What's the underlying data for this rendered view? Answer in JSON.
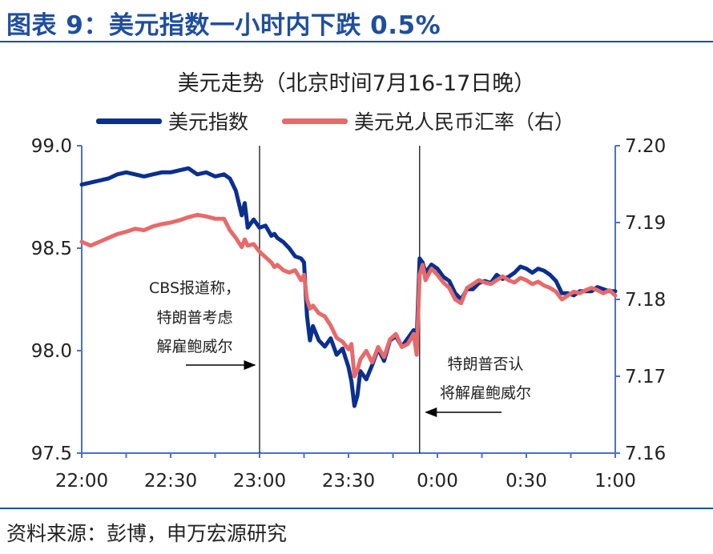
{
  "figure_title": "图表 9：美元指数一小时内下跌 0.5%",
  "source": "资料来源：彭博，申万宏源研究",
  "chart_data": {
    "type": "line",
    "title": "美元走势（北京时间7月16-17日晚）",
    "legend_position": "top",
    "grid": false,
    "x_ticks": [
      "22:00",
      "22:30",
      "23:00",
      "23:30",
      "0:00",
      "0:30",
      "1:00"
    ],
    "x_range_minutes": [
      0,
      180
    ],
    "y_left": {
      "ticks": [
        "99.0",
        "98.5",
        "98.0",
        "97.5"
      ],
      "range": [
        97.5,
        99.0
      ]
    },
    "y_right": {
      "ticks": [
        "7.20",
        "7.19",
        "7.18",
        "7.17",
        "7.16"
      ],
      "range": [
        7.16,
        7.2
      ]
    },
    "vlines_minutes": [
      60,
      114
    ],
    "series": [
      {
        "name": "美元指数",
        "axis": "left",
        "color": "#0b2f8f",
        "x": [
          0,
          3,
          6,
          9,
          12,
          15,
          18,
          21,
          24,
          27,
          30,
          33,
          36,
          39,
          42,
          45,
          48,
          50,
          52,
          54,
          55,
          56,
          58,
          60,
          62,
          64,
          65,
          66,
          68,
          70,
          72,
          74,
          75,
          76,
          77,
          78,
          80,
          82,
          84,
          86,
          88,
          90,
          91,
          92,
          93,
          94,
          96,
          98,
          100,
          102,
          104,
          106,
          108,
          110,
          112,
          113,
          114,
          115,
          116,
          118,
          120,
          122,
          124,
          126,
          128,
          130,
          132,
          134,
          136,
          138,
          140,
          142,
          144,
          146,
          148,
          150,
          152,
          154,
          156,
          158,
          160,
          162,
          164,
          166,
          168,
          170,
          172,
          174,
          176,
          178,
          180
        ],
        "y": [
          98.81,
          98.82,
          98.83,
          98.84,
          98.86,
          98.87,
          98.86,
          98.85,
          98.86,
          98.87,
          98.87,
          98.88,
          98.89,
          98.86,
          98.87,
          98.85,
          98.86,
          98.84,
          98.78,
          98.66,
          98.72,
          98.6,
          98.64,
          98.6,
          98.61,
          98.56,
          98.57,
          98.55,
          98.53,
          98.5,
          98.46,
          98.45,
          98.43,
          98.17,
          98.05,
          98.12,
          98.05,
          98.02,
          98.06,
          97.98,
          98.01,
          97.92,
          97.85,
          97.73,
          97.78,
          97.9,
          97.86,
          97.93,
          98.01,
          97.95,
          98.05,
          98.07,
          98.02,
          98.06,
          98.1,
          98.05,
          98.45,
          98.43,
          98.38,
          98.42,
          98.4,
          98.36,
          98.34,
          98.28,
          98.25,
          98.3,
          98.3,
          98.33,
          98.34,
          98.33,
          98.37,
          98.35,
          98.36,
          98.38,
          98.41,
          98.4,
          98.38,
          98.4,
          98.39,
          98.37,
          98.34,
          98.28,
          98.28,
          98.27,
          98.29,
          98.29,
          98.29,
          98.31,
          98.3,
          98.29,
          98.29
        ]
      },
      {
        "name": "美元兑人民币汇率（右）",
        "axis": "right",
        "color": "#e76a6a",
        "x": [
          0,
          3,
          6,
          9,
          12,
          15,
          18,
          21,
          24,
          27,
          30,
          33,
          36,
          39,
          42,
          45,
          48,
          50,
          52,
          54,
          55,
          56,
          58,
          60,
          62,
          64,
          65,
          66,
          68,
          70,
          72,
          74,
          75,
          76,
          77,
          78,
          80,
          82,
          84,
          86,
          88,
          90,
          91,
          92,
          93,
          94,
          96,
          98,
          100,
          102,
          104,
          106,
          108,
          110,
          112,
          113,
          114,
          115,
          116,
          118,
          120,
          122,
          124,
          126,
          128,
          130,
          132,
          134,
          136,
          138,
          140,
          142,
          144,
          146,
          148,
          150,
          152,
          154,
          156,
          158,
          160,
          162,
          164,
          166,
          168,
          170,
          172,
          174,
          176,
          178,
          180
        ],
        "y": [
          7.1875,
          7.187,
          7.1875,
          7.188,
          7.1885,
          7.1888,
          7.1892,
          7.189,
          7.1895,
          7.1898,
          7.19,
          7.1903,
          7.1907,
          7.191,
          7.1908,
          7.1905,
          7.1905,
          7.189,
          7.188,
          7.1868,
          7.1878,
          7.187,
          7.1872,
          7.1862,
          7.1855,
          7.1848,
          7.1842,
          7.1845,
          7.1838,
          7.1835,
          7.1838,
          7.1825,
          7.1832,
          7.18,
          7.1788,
          7.1792,
          7.1782,
          7.1778,
          7.1766,
          7.175,
          7.1745,
          7.1735,
          7.1742,
          7.17,
          7.1708,
          7.1722,
          7.1733,
          7.1718,
          7.1738,
          7.1725,
          7.1748,
          7.1755,
          7.1738,
          7.1742,
          7.1755,
          7.1728,
          7.1832,
          7.1845,
          7.1825,
          7.184,
          7.1832,
          7.1822,
          7.1815,
          7.18,
          7.1795,
          7.1815,
          7.182,
          7.1825,
          7.1822,
          7.182,
          7.1825,
          7.183,
          7.1825,
          7.1822,
          7.1828,
          7.1825,
          7.182,
          7.1823,
          7.1818,
          7.1815,
          7.181,
          7.18,
          7.1805,
          7.181,
          7.1808,
          7.1812,
          7.1815,
          7.1812,
          7.1808,
          7.1812,
          7.1805
        ]
      }
    ],
    "annotations": [
      {
        "lines": [
          "CBS报道称，",
          "特朗普考虑",
          "解雇鲍威尔"
        ],
        "arrow": "right",
        "at_minutes": 60
      },
      {
        "lines": [
          "特朗普否认",
          "将解雇鲍威尔"
        ],
        "arrow": "left",
        "at_minutes": 114
      }
    ]
  }
}
